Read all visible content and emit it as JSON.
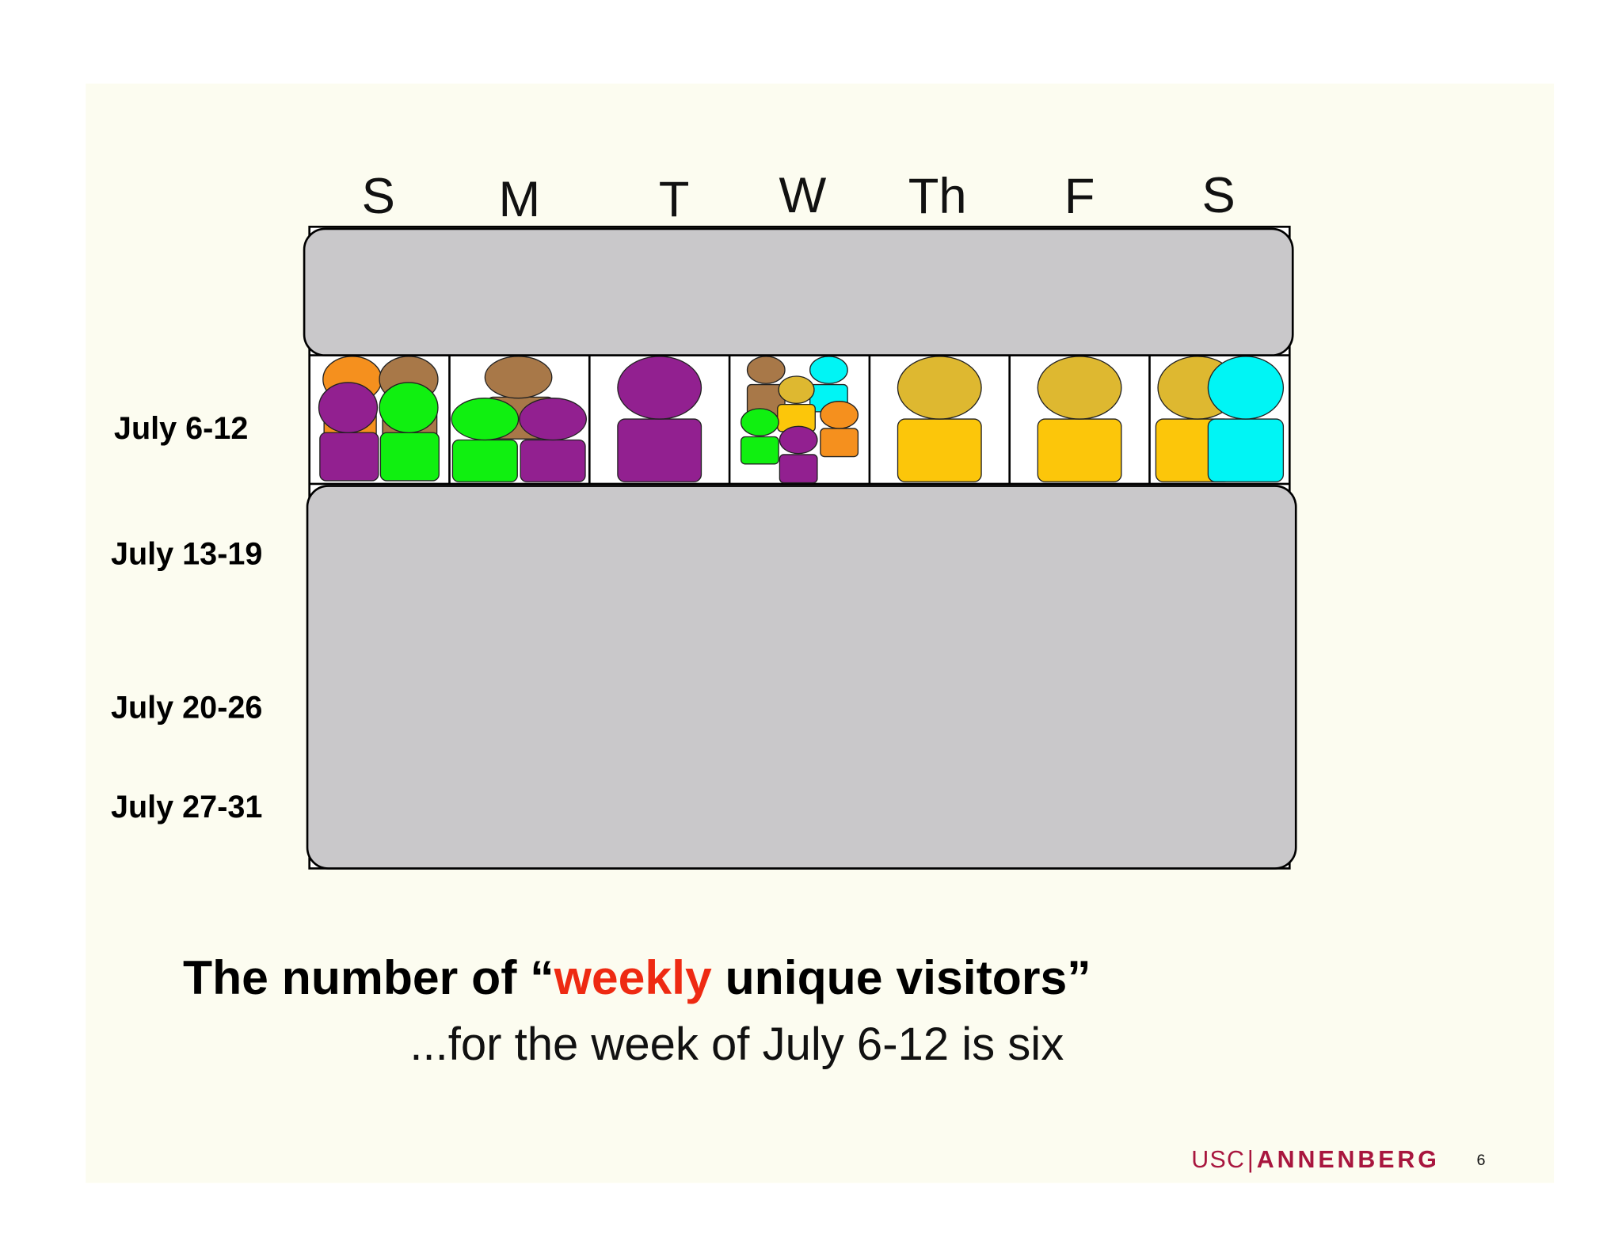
{
  "days": [
    "S",
    "M",
    "T",
    "W",
    "Th",
    "F",
    "S"
  ],
  "weeks": [
    "July 6-12",
    "July 13-19",
    "July 20-26",
    "July 27-31"
  ],
  "headline": {
    "before": "The number of “",
    "highlight": "weekly",
    "after": " unique visitors”"
  },
  "subtitle": "...for the week of July 6-12 is six",
  "footer": {
    "logo_left": "USC",
    "logo_divider": "|",
    "logo_right": "ANNENBERG",
    "page": "6"
  }
}
